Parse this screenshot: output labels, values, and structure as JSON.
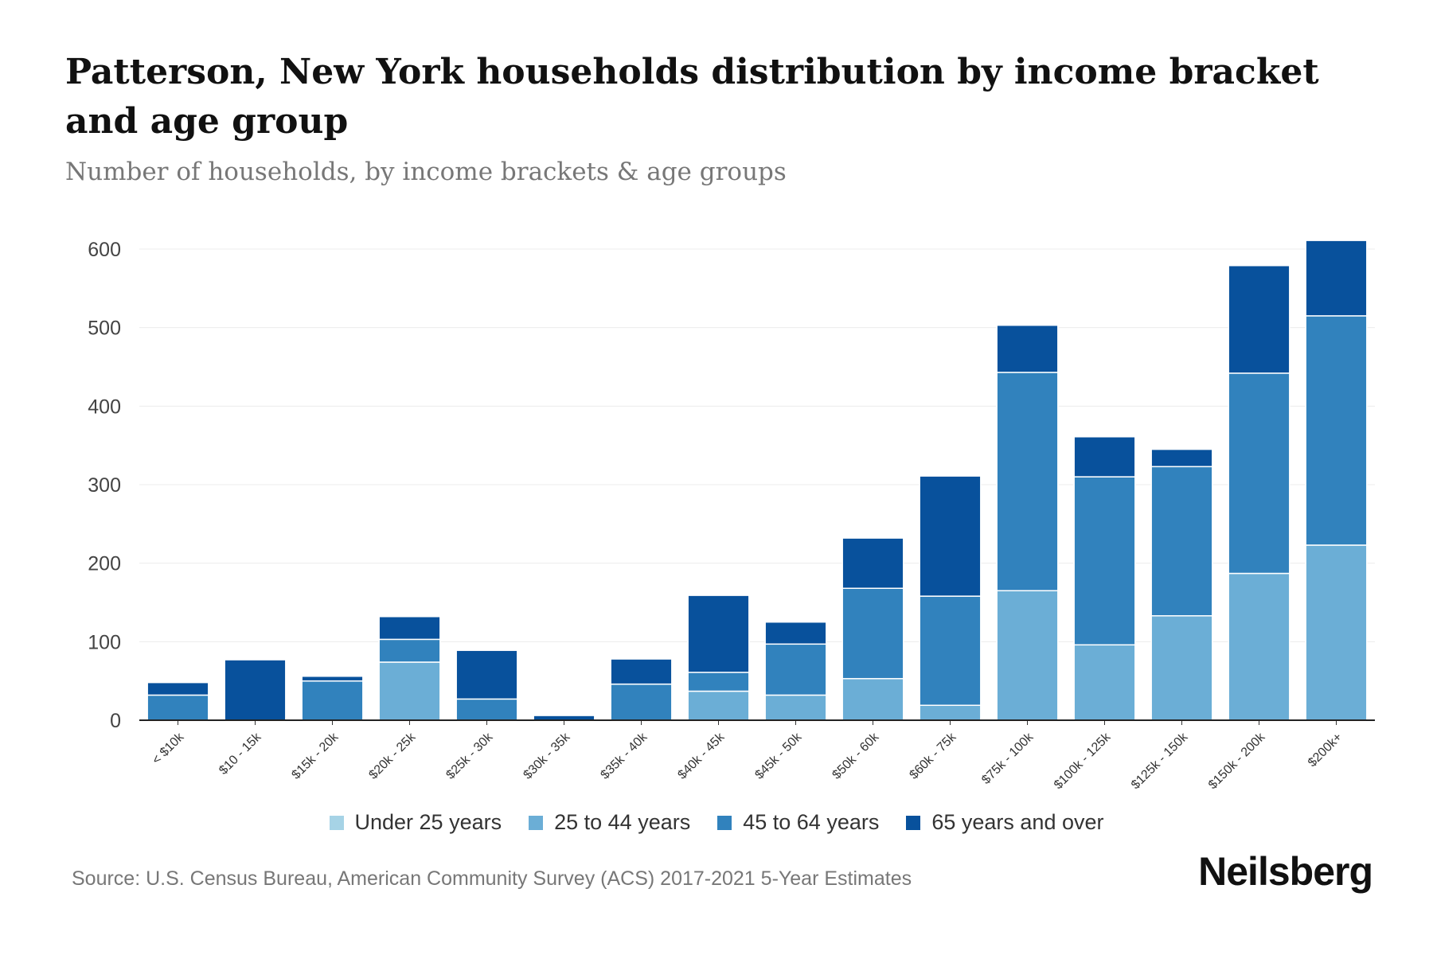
{
  "title": "Patterson, New York households distribution by income bracket and age group",
  "subtitle": "Number of households, by income brackets & age groups",
  "source": "Source: U.S. Census Bureau, American Community Survey (ACS) 2017-2021 5-Year Estimates",
  "logo": "Neilsberg",
  "chart_data": {
    "type": "bar",
    "stacked": true,
    "categories": [
      "< $10k",
      "$10 - 15k",
      "$15k - 20k",
      "$20k - 25k",
      "$25k - 30k",
      "$30k - 35k",
      "$35k - 40k",
      "$40k - 45k",
      "$45k - 50k",
      "$50k - 60k",
      "$60k - 75k",
      "$75k - 100k",
      "$100k - 125k",
      "$125k - 150k",
      "$150k - 200k",
      "$200k+"
    ],
    "series": [
      {
        "name": "Under 25 years",
        "color": "#a6d3e6",
        "values": [
          0,
          0,
          0,
          0,
          0,
          0,
          0,
          0,
          0,
          0,
          0,
          0,
          0,
          0,
          0,
          0
        ]
      },
      {
        "name": "25 to 44 years",
        "color": "#6baed6",
        "values": [
          0,
          0,
          0,
          74,
          0,
          0,
          0,
          37,
          32,
          53,
          19,
          165,
          96,
          133,
          187,
          223
        ]
      },
      {
        "name": "45 to 64 years",
        "color": "#3182bd",
        "values": [
          32,
          0,
          50,
          29,
          27,
          0,
          46,
          24,
          65,
          115,
          139,
          278,
          214,
          190,
          255,
          292
        ]
      },
      {
        "name": "65 years and over",
        "color": "#08519c",
        "values": [
          16,
          77,
          6,
          29,
          62,
          6,
          32,
          98,
          28,
          64,
          153,
          60,
          51,
          22,
          137,
          96
        ]
      }
    ],
    "ylim": [
      0,
      600
    ],
    "yticks": [
      0,
      100,
      200,
      300,
      400,
      500,
      600
    ],
    "xlabel": "",
    "ylabel": "",
    "grid": true,
    "legend": "bottom"
  }
}
